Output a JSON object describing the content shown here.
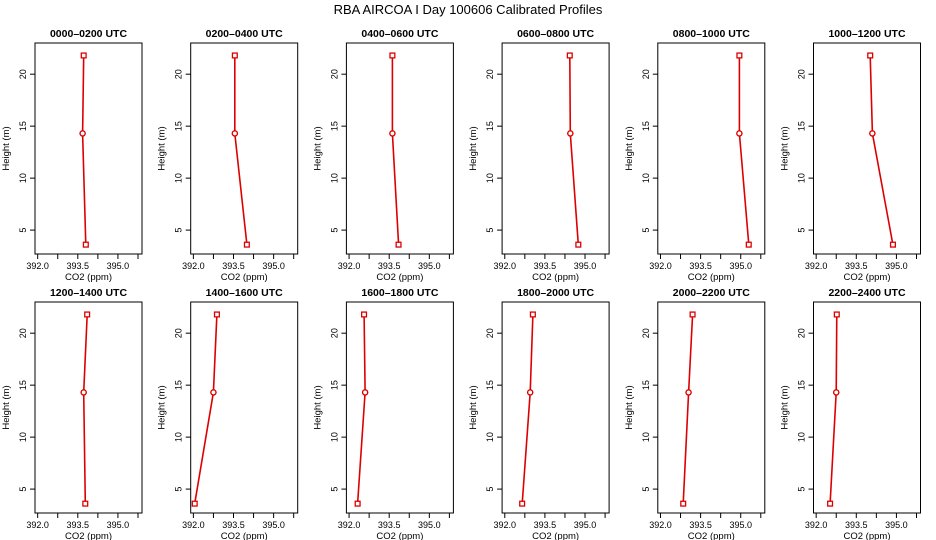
{
  "figure": {
    "title": "RBA AIRCOA I  Day 100606  Calibrated Profiles"
  },
  "colors": {
    "series": "#dd0000",
    "axes": "#000000",
    "background": "#ffffff"
  },
  "chart_data": [
    {
      "type": "line",
      "title": "0000–0200 UTC",
      "xlabel": "CO2 (ppm)",
      "ylabel": "Height (m)",
      "xlim": [
        391.9,
        395.9
      ],
      "ylim": [
        2.7,
        23.0
      ],
      "xticks": [
        392.0,
        393.5,
        395.0
      ],
      "xtick_labels": [
        "392.0",
        "393.5",
        "395.0"
      ],
      "yticks": [
        5,
        10,
        15,
        20
      ],
      "ytick_labels": [
        "5",
        "10",
        "15",
        "20"
      ],
      "series": [
        {
          "x": [
            393.8,
            393.68,
            393.72
          ],
          "y": [
            3.6,
            14.3,
            21.8
          ]
        }
      ]
    },
    {
      "type": "line",
      "title": "0200–0400 UTC",
      "xlabel": "CO2 (ppm)",
      "ylabel": "Height (m)",
      "xlim": [
        391.9,
        395.9
      ],
      "ylim": [
        2.7,
        23.0
      ],
      "xticks": [
        392.0,
        393.5,
        395.0
      ],
      "xtick_labels": [
        "392.0",
        "393.5",
        "395.0"
      ],
      "yticks": [
        5,
        10,
        15,
        20
      ],
      "ytick_labels": [
        "5",
        "10",
        "15",
        "20"
      ],
      "series": [
        {
          "x": [
            394.0,
            393.55,
            393.55
          ],
          "y": [
            3.6,
            14.3,
            21.8
          ]
        }
      ]
    },
    {
      "type": "line",
      "title": "0400–0600 UTC",
      "xlabel": "CO2 (ppm)",
      "ylabel": "Height (m)",
      "xlim": [
        391.9,
        395.9
      ],
      "ylim": [
        2.7,
        23.0
      ],
      "xticks": [
        392.0,
        393.5,
        395.0
      ],
      "xtick_labels": [
        "392.0",
        "393.5",
        "395.0"
      ],
      "yticks": [
        5,
        10,
        15,
        20
      ],
      "ytick_labels": [
        "5",
        "10",
        "15",
        "20"
      ],
      "series": [
        {
          "x": [
            393.85,
            393.62,
            393.62
          ],
          "y": [
            3.6,
            14.3,
            21.8
          ]
        }
      ]
    },
    {
      "type": "line",
      "title": "0600–0800 UTC",
      "xlabel": "CO2 (ppm)",
      "ylabel": "Height (m)",
      "xlim": [
        391.9,
        395.9
      ],
      "ylim": [
        2.7,
        23.0
      ],
      "xticks": [
        392.0,
        393.5,
        395.0
      ],
      "xtick_labels": [
        "392.0",
        "393.5",
        "395.0"
      ],
      "yticks": [
        5,
        10,
        15,
        20
      ],
      "ytick_labels": [
        "5",
        "10",
        "15",
        "20"
      ],
      "series": [
        {
          "x": [
            394.75,
            394.45,
            394.43
          ],
          "y": [
            3.6,
            14.3,
            21.8
          ]
        }
      ]
    },
    {
      "type": "line",
      "title": "0800–1000 UTC",
      "xlabel": "CO2 (ppm)",
      "ylabel": "Height (m)",
      "xlim": [
        391.9,
        395.9
      ],
      "ylim": [
        2.7,
        23.0
      ],
      "xticks": [
        392.0,
        393.5,
        395.0
      ],
      "xtick_labels": [
        "392.0",
        "393.5",
        "395.0"
      ],
      "yticks": [
        5,
        10,
        15,
        20
      ],
      "ytick_labels": [
        "5",
        "10",
        "15",
        "20"
      ],
      "series": [
        {
          "x": [
            395.3,
            394.95,
            394.95
          ],
          "y": [
            3.6,
            14.3,
            21.8
          ]
        }
      ]
    },
    {
      "type": "line",
      "title": "1000–1200 UTC",
      "xlabel": "CO2 (ppm)",
      "ylabel": "Height (m)",
      "xlim": [
        391.9,
        395.9
      ],
      "ylim": [
        2.7,
        23.0
      ],
      "xticks": [
        392.0,
        393.5,
        395.0
      ],
      "xtick_labels": [
        "392.0",
        "393.5",
        "395.0"
      ],
      "yticks": [
        5,
        10,
        15,
        20
      ],
      "ytick_labels": [
        "5",
        "10",
        "15",
        "20"
      ],
      "series": [
        {
          "x": [
            394.87,
            394.1,
            394.02
          ],
          "y": [
            3.6,
            14.3,
            21.8
          ]
        }
      ]
    },
    {
      "type": "line",
      "title": "1200–1400 UTC",
      "xlabel": "CO2 (ppm)",
      "ylabel": "Height (m)",
      "xlim": [
        391.9,
        395.9
      ],
      "ylim": [
        2.7,
        23.0
      ],
      "xticks": [
        392.0,
        393.5,
        395.0
      ],
      "xtick_labels": [
        "392.0",
        "393.5",
        "395.0"
      ],
      "yticks": [
        5,
        10,
        15,
        20
      ],
      "ytick_labels": [
        "5",
        "10",
        "15",
        "20"
      ],
      "series": [
        {
          "x": [
            393.78,
            393.72,
            393.85
          ],
          "y": [
            3.6,
            14.3,
            21.8
          ]
        }
      ]
    },
    {
      "type": "line",
      "title": "1400–1600 UTC",
      "xlabel": "CO2 (ppm)",
      "ylabel": "Height (m)",
      "xlim": [
        391.9,
        395.9
      ],
      "ylim": [
        2.7,
        23.0
      ],
      "xticks": [
        392.0,
        393.5,
        395.0
      ],
      "xtick_labels": [
        "392.0",
        "393.5",
        "395.0"
      ],
      "yticks": [
        5,
        10,
        15,
        20
      ],
      "ytick_labels": [
        "5",
        "10",
        "15",
        "20"
      ],
      "series": [
        {
          "x": [
            392.05,
            392.75,
            392.88
          ],
          "y": [
            3.6,
            14.3,
            21.8
          ]
        }
      ]
    },
    {
      "type": "line",
      "title": "1600–1800 UTC",
      "xlabel": "CO2 (ppm)",
      "ylabel": "Height (m)",
      "xlim": [
        391.9,
        395.9
      ],
      "ylim": [
        2.7,
        23.0
      ],
      "xticks": [
        392.0,
        393.5,
        395.0
      ],
      "xtick_labels": [
        "392.0",
        "393.5",
        "395.0"
      ],
      "yticks": [
        5,
        10,
        15,
        20
      ],
      "ytick_labels": [
        "5",
        "10",
        "15",
        "20"
      ],
      "series": [
        {
          "x": [
            392.32,
            392.6,
            392.56
          ],
          "y": [
            3.6,
            14.3,
            21.8
          ]
        }
      ]
    },
    {
      "type": "line",
      "title": "1800–2000 UTC",
      "xlabel": "CO2 (ppm)",
      "ylabel": "Height (m)",
      "xlim": [
        391.9,
        395.9
      ],
      "ylim": [
        2.7,
        23.0
      ],
      "xticks": [
        392.0,
        393.5,
        395.0
      ],
      "xtick_labels": [
        "392.0",
        "393.5",
        "395.0"
      ],
      "yticks": [
        5,
        10,
        15,
        20
      ],
      "ytick_labels": [
        "5",
        "10",
        "15",
        "20"
      ],
      "series": [
        {
          "x": [
            392.65,
            392.95,
            393.05
          ],
          "y": [
            3.6,
            14.3,
            21.8
          ]
        }
      ]
    },
    {
      "type": "line",
      "title": "2000–2200 UTC",
      "xlabel": "CO2 (ppm)",
      "ylabel": "Height (m)",
      "xlim": [
        391.9,
        395.9
      ],
      "ylim": [
        2.7,
        23.0
      ],
      "xticks": [
        392.0,
        393.5,
        395.0
      ],
      "xtick_labels": [
        "392.0",
        "393.5",
        "395.0"
      ],
      "yticks": [
        5,
        10,
        15,
        20
      ],
      "ytick_labels": [
        "5",
        "10",
        "15",
        "20"
      ],
      "series": [
        {
          "x": [
            392.85,
            393.05,
            393.2
          ],
          "y": [
            3.6,
            14.3,
            21.8
          ]
        }
      ]
    },
    {
      "type": "line",
      "title": "2200–2400 UTC",
      "xlabel": "CO2 (ppm)",
      "ylabel": "Height (m)",
      "xlim": [
        391.9,
        395.9
      ],
      "ylim": [
        2.7,
        23.0
      ],
      "xticks": [
        392.0,
        393.5,
        395.0
      ],
      "xtick_labels": [
        "392.0",
        "393.5",
        "395.0"
      ],
      "yticks": [
        5,
        10,
        15,
        20
      ],
      "ytick_labels": [
        "5",
        "10",
        "15",
        "20"
      ],
      "series": [
        {
          "x": [
            392.52,
            392.75,
            392.77
          ],
          "y": [
            3.6,
            14.3,
            21.8
          ]
        }
      ]
    }
  ]
}
